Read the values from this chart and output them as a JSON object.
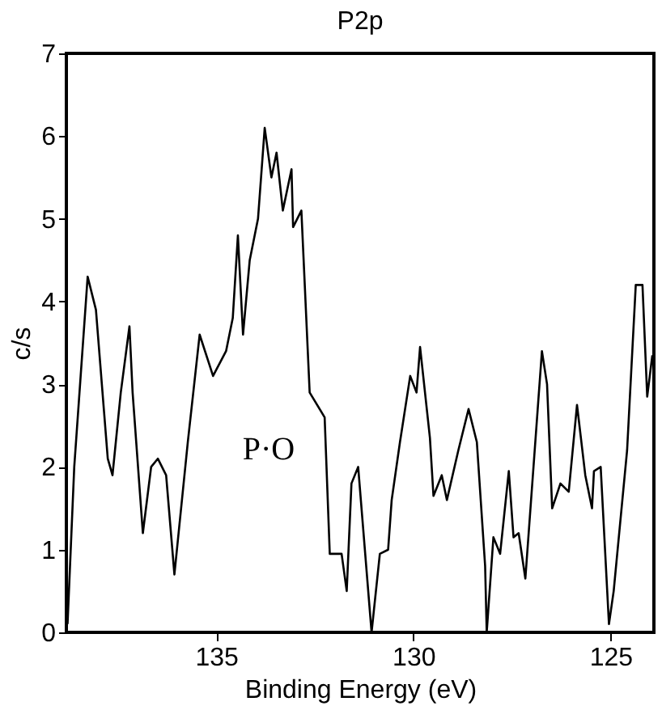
{
  "chart_data": {
    "type": "line",
    "title": "P2p",
    "xlabel": "Binding Energy (eV)",
    "ylabel": "c/s",
    "x": [
      138.77,
      138.6,
      138.26,
      138.05,
      137.75,
      137.63,
      137.42,
      137.2,
      137.12,
      136.86,
      136.65,
      136.48,
      136.27,
      136.06,
      135.72,
      135.42,
      135.08,
      134.75,
      134.58,
      134.45,
      134.32,
      134.15,
      133.94,
      133.77,
      133.6,
      133.47,
      133.31,
      133.09,
      133.05,
      132.84,
      132.63,
      132.25,
      132.12,
      131.82,
      131.69,
      131.57,
      131.4,
      131.06,
      130.85,
      130.64,
      130.55,
      130.34,
      130.08,
      129.92,
      129.83,
      129.58,
      129.49,
      129.28,
      129.15,
      128.86,
      128.6,
      128.39,
      128.18,
      128.14,
      127.97,
      127.8,
      127.58,
      127.46,
      127.33,
      127.16,
      126.74,
      126.61,
      126.48,
      126.27,
      126.06,
      125.85,
      125.64,
      125.47,
      125.42,
      125.25,
      125.04,
      124.92,
      124.58,
      124.36,
      124.19,
      124.07,
      123.94
    ],
    "series": [
      {
        "color": "#000000",
        "values": [
          0.1,
          2.0,
          4.3,
          3.9,
          2.1,
          1.9,
          2.9,
          3.7,
          2.9,
          1.2,
          2.0,
          2.1,
          1.9,
          0.7,
          2.3,
          3.6,
          3.1,
          3.4,
          3.8,
          4.8,
          3.6,
          4.5,
          5.0,
          6.1,
          5.5,
          5.8,
          5.1,
          5.6,
          4.9,
          5.1,
          2.9,
          2.6,
          0.95,
          0.95,
          0.5,
          1.8,
          2.0,
          0.0,
          0.95,
          1.0,
          1.6,
          2.3,
          3.1,
          2.9,
          3.45,
          2.35,
          1.65,
          1.9,
          1.6,
          2.2,
          2.7,
          2.3,
          0.8,
          0.0,
          1.15,
          0.95,
          1.95,
          1.15,
          1.2,
          0.65,
          3.4,
          3.0,
          1.5,
          1.8,
          1.7,
          2.75,
          1.9,
          1.5,
          1.95,
          2.0,
          0.1,
          0.5,
          2.2,
          4.2,
          4.2,
          2.85,
          3.35
        ]
      }
    ],
    "xlim": [
      138.8,
      123.9
    ],
    "xticks": [
      135,
      130,
      125
    ],
    "ylim": [
      0,
      7
    ],
    "yticks": [
      0,
      1,
      2,
      3,
      4,
      5,
      6,
      7
    ],
    "annotations": [
      "P·O"
    ],
    "grid": false,
    "marker": "none",
    "line_style": "solid"
  }
}
